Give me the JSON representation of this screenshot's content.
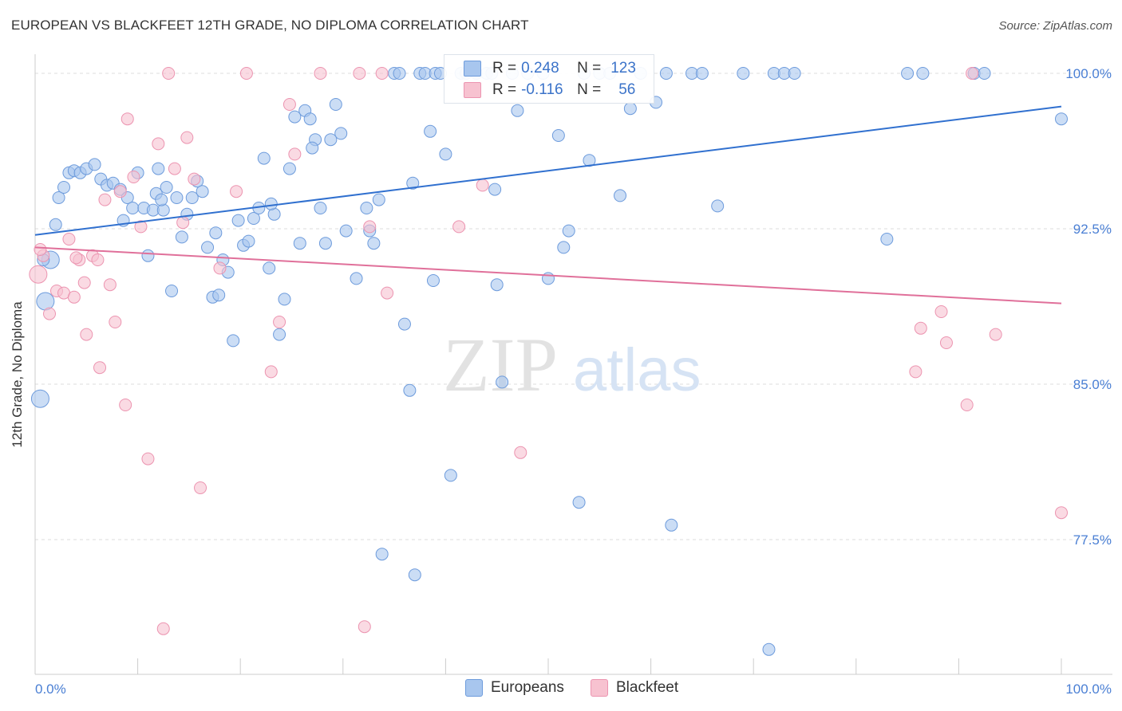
{
  "header": {
    "title": "EUROPEAN VS BLACKFEET 12TH GRADE, NO DIPLOMA CORRELATION CHART",
    "source": "Source: ZipAtlas.com"
  },
  "watermark": {
    "zip": "ZIP",
    "atlas": "atlas"
  },
  "legend_stats": {
    "r_label": "R =",
    "n_label": "N =",
    "europeans": {
      "r": "0.248",
      "n": "123"
    },
    "blackfeet": {
      "r": "-0.116",
      "n": "56"
    }
  },
  "bottom_legend": {
    "europeans": "Europeans",
    "blackfeet": "Blackfeet"
  },
  "colors": {
    "european_fill": "#a8c6ee",
    "european_stroke": "#6d9bdc",
    "european_line": "#3070cf",
    "blackfeet_fill": "#f7c2d0",
    "blackfeet_stroke": "#ec94b0",
    "blackfeet_line": "#e0709a",
    "tick_label": "#4a7fd4",
    "grid": "#dddddd"
  },
  "chart_data": {
    "type": "scatter",
    "xlabel": "",
    "ylabel": "12th Grade, No Diploma",
    "xlim": [
      0,
      100
    ],
    "ylim": [
      71.0,
      100.5
    ],
    "x_tick_labels": [
      {
        "x": 0,
        "label": "0.0%"
      },
      {
        "x": 100,
        "label": "100.0%"
      }
    ],
    "y_tick_labels": [
      {
        "y": 100,
        "label": "100.0%"
      },
      {
        "y": 92.5,
        "label": "92.5%"
      },
      {
        "y": 85,
        "label": "85.0%"
      },
      {
        "y": 77.5,
        "label": "77.5%"
      }
    ],
    "grid": true,
    "series": [
      {
        "name": "Europeans",
        "trend": [
          [
            0,
            92.2
          ],
          [
            100,
            98.4
          ]
        ],
        "points": [
          [
            0.5,
            84.3
          ],
          [
            1.0,
            89.0
          ],
          [
            1.5,
            91.0
          ],
          [
            2.0,
            92.7
          ],
          [
            2.3,
            94.0
          ],
          [
            2.8,
            94.5
          ],
          [
            3.3,
            95.2
          ],
          [
            3.8,
            95.3
          ],
          [
            4.4,
            95.2
          ],
          [
            5.0,
            95.4
          ],
          [
            5.8,
            95.6
          ],
          [
            6.4,
            94.9
          ],
          [
            7.0,
            94.6
          ],
          [
            7.6,
            94.7
          ],
          [
            8.3,
            94.4
          ],
          [
            8.6,
            92.9
          ],
          [
            9.0,
            94.0
          ],
          [
            9.5,
            93.5
          ],
          [
            10.0,
            95.2
          ],
          [
            10.6,
            93.5
          ],
          [
            11.0,
            91.2
          ],
          [
            11.5,
            93.4
          ],
          [
            12.0,
            95.4
          ],
          [
            12.5,
            93.4
          ],
          [
            12.8,
            94.5
          ],
          [
            13.3,
            89.5
          ],
          [
            13.8,
            94.0
          ],
          [
            14.3,
            92.1
          ],
          [
            14.8,
            93.2
          ],
          [
            15.3,
            94.0
          ],
          [
            15.8,
            94.8
          ],
          [
            16.3,
            94.3
          ],
          [
            16.8,
            91.6
          ],
          [
            17.3,
            89.2
          ],
          [
            17.9,
            89.3
          ],
          [
            18.3,
            91.0
          ],
          [
            18.8,
            90.4
          ],
          [
            19.3,
            87.1
          ],
          [
            19.8,
            92.9
          ],
          [
            20.3,
            91.7
          ],
          [
            20.8,
            91.9
          ],
          [
            21.3,
            93.0
          ],
          [
            21.8,
            93.5
          ],
          [
            22.3,
            95.9
          ],
          [
            22.8,
            90.6
          ],
          [
            23.3,
            93.2
          ],
          [
            23.8,
            87.4
          ],
          [
            24.3,
            89.1
          ],
          [
            24.8,
            95.4
          ],
          [
            25.3,
            97.9
          ],
          [
            25.8,
            91.8
          ],
          [
            26.3,
            98.2
          ],
          [
            26.8,
            97.8
          ],
          [
            27.3,
            96.8
          ],
          [
            27.8,
            93.5
          ],
          [
            28.3,
            91.8
          ],
          [
            28.8,
            96.8
          ],
          [
            29.3,
            98.5
          ],
          [
            29.8,
            97.1
          ],
          [
            30.3,
            92.4
          ],
          [
            31.3,
            90.1
          ],
          [
            32.3,
            93.5
          ],
          [
            32.6,
            92.4
          ],
          [
            33.0,
            91.8
          ],
          [
            35.0,
            100.0
          ],
          [
            35.5,
            100.0
          ],
          [
            36.0,
            87.9
          ],
          [
            36.5,
            84.7
          ],
          [
            37.0,
            75.8
          ],
          [
            37.5,
            100.0
          ],
          [
            38.0,
            100.0
          ],
          [
            38.5,
            97.2
          ],
          [
            38.8,
            90.0
          ],
          [
            39.0,
            100.0
          ],
          [
            39.5,
            100.0
          ],
          [
            40.0,
            96.1
          ],
          [
            40.5,
            80.6
          ],
          [
            41.5,
            100.0
          ],
          [
            42.0,
            100.0
          ],
          [
            43.0,
            100.0
          ],
          [
            44.0,
            100.0
          ],
          [
            44.5,
            100.0
          ],
          [
            45.0,
            89.8
          ],
          [
            45.5,
            85.1
          ],
          [
            46.5,
            100.0
          ],
          [
            47.0,
            98.2
          ],
          [
            48.0,
            100.0
          ],
          [
            49.5,
            100.0
          ],
          [
            50.0,
            90.1
          ],
          [
            51.0,
            97.0
          ],
          [
            51.5,
            91.6
          ],
          [
            52.0,
            92.4
          ],
          [
            53.0,
            79.3
          ],
          [
            53.5,
            100.0
          ],
          [
            54.0,
            95.8
          ],
          [
            55.0,
            100.0
          ],
          [
            56.0,
            100.0
          ],
          [
            57.0,
            94.1
          ],
          [
            58.0,
            98.3
          ],
          [
            59.0,
            100.0
          ],
          [
            60.5,
            98.6
          ],
          [
            61.5,
            100.0
          ],
          [
            62.0,
            78.2
          ],
          [
            64.0,
            100.0
          ],
          [
            65.0,
            100.0
          ],
          [
            66.5,
            93.6
          ],
          [
            69.0,
            100.0
          ],
          [
            71.5,
            72.2
          ],
          [
            72.0,
            100.0
          ],
          [
            73.0,
            100.0
          ],
          [
            74.0,
            100.0
          ],
          [
            83.0,
            92.0
          ],
          [
            85.0,
            100.0
          ],
          [
            86.5,
            100.0
          ],
          [
            91.5,
            100.0
          ],
          [
            92.5,
            100.0
          ],
          [
            100.0,
            97.8
          ],
          [
            0.8,
            91.0
          ],
          [
            11.8,
            94.2
          ],
          [
            17.6,
            92.3
          ],
          [
            23.0,
            93.7
          ],
          [
            27.0,
            96.4
          ],
          [
            33.5,
            93.9
          ],
          [
            36.8,
            94.7
          ],
          [
            44.8,
            94.4
          ],
          [
            12.3,
            93.9
          ],
          [
            33.8,
            76.8
          ]
        ]
      },
      {
        "name": "Blackfeet",
        "trend": [
          [
            0,
            91.6
          ],
          [
            100,
            88.9
          ]
        ],
        "points": [
          [
            0.3,
            90.3
          ],
          [
            0.8,
            91.2
          ],
          [
            1.4,
            88.4
          ],
          [
            2.1,
            89.5
          ],
          [
            2.8,
            89.4
          ],
          [
            3.3,
            92.0
          ],
          [
            3.8,
            89.2
          ],
          [
            4.3,
            91.0
          ],
          [
            4.8,
            89.9
          ],
          [
            5.0,
            87.4
          ],
          [
            5.6,
            91.2
          ],
          [
            6.1,
            91.0
          ],
          [
            6.3,
            85.8
          ],
          [
            6.8,
            93.9
          ],
          [
            7.3,
            89.8
          ],
          [
            7.8,
            88.0
          ],
          [
            8.3,
            94.3
          ],
          [
            8.8,
            84.0
          ],
          [
            9.0,
            97.8
          ],
          [
            9.6,
            95.0
          ],
          [
            10.3,
            92.6
          ],
          [
            11.0,
            81.4
          ],
          [
            12.0,
            96.6
          ],
          [
            12.5,
            73.2
          ],
          [
            13.0,
            100.0
          ],
          [
            13.6,
            95.4
          ],
          [
            14.4,
            92.8
          ],
          [
            14.8,
            96.9
          ],
          [
            15.5,
            94.9
          ],
          [
            16.1,
            80.0
          ],
          [
            18.0,
            90.6
          ],
          [
            19.6,
            94.3
          ],
          [
            20.6,
            100.0
          ],
          [
            23.0,
            85.6
          ],
          [
            23.8,
            88.0
          ],
          [
            24.8,
            98.5
          ],
          [
            25.3,
            96.1
          ],
          [
            27.8,
            100.0
          ],
          [
            31.6,
            100.0
          ],
          [
            32.1,
            73.3
          ],
          [
            32.6,
            92.6
          ],
          [
            33.8,
            100.0
          ],
          [
            34.3,
            89.4
          ],
          [
            41.3,
            92.6
          ],
          [
            43.6,
            94.6
          ],
          [
            47.3,
            81.7
          ],
          [
            85.8,
            85.6
          ],
          [
            86.3,
            87.7
          ],
          [
            88.3,
            88.5
          ],
          [
            88.8,
            87.0
          ],
          [
            90.8,
            84.0
          ],
          [
            91.3,
            100.0
          ],
          [
            93.6,
            87.4
          ],
          [
            100.0,
            78.8
          ],
          [
            4.0,
            91.1
          ],
          [
            0.5,
            91.5
          ]
        ]
      }
    ]
  }
}
